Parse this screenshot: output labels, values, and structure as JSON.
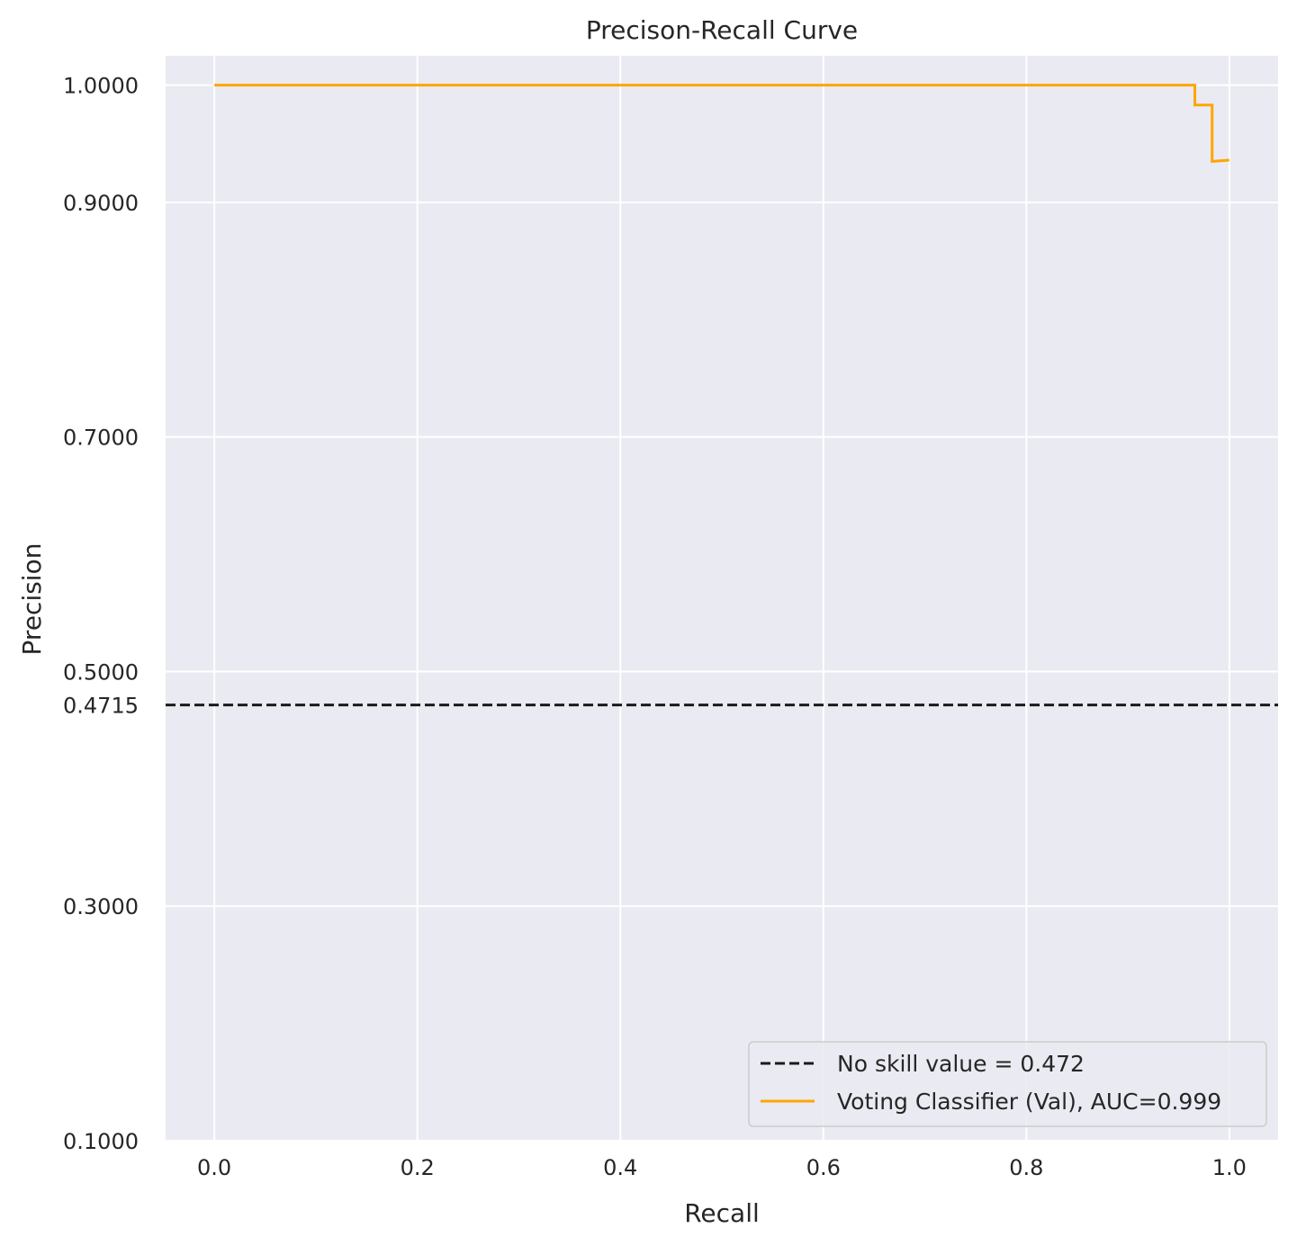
{
  "chart_data": {
    "type": "line",
    "title": "Precison-Recall Curve",
    "xlabel": "Recall",
    "ylabel": "Precision",
    "xlim": [
      -0.048,
      1.048
    ],
    "ylim": [
      0.1,
      1.025
    ],
    "xticks": [
      0.0,
      0.2,
      0.4,
      0.6,
      0.8,
      1.0
    ],
    "xtick_labels": [
      "0.0",
      "0.2",
      "0.4",
      "0.6",
      "0.8",
      "1.0"
    ],
    "yticks": [
      0.1,
      0.3,
      0.4715,
      0.5,
      0.7,
      0.9,
      1.0
    ],
    "ytick_labels": [
      "0.1000",
      "0.3000",
      "0.4715",
      "0.5000",
      "0.7000",
      "0.9000",
      "1.0000"
    ],
    "grid": true,
    "background_color": "#eaeaf2",
    "grid_color": "#ffffff",
    "legend_position": "lower right",
    "series": [
      {
        "name": "No skill value = 0.472",
        "style": "dashed",
        "color": "#1a1a1a",
        "x": [
          -0.048,
          1.048
        ],
        "y": [
          0.4715,
          0.4715
        ]
      },
      {
        "name": "Voting Classifier (Val), AUC=0.999",
        "style": "step",
        "color": "#ffa500",
        "x": [
          0.0,
          0.966,
          0.966,
          0.983,
          0.983,
          1.0
        ],
        "y": [
          1.0,
          1.0,
          0.983,
          0.983,
          0.935,
          0.936
        ]
      }
    ]
  }
}
